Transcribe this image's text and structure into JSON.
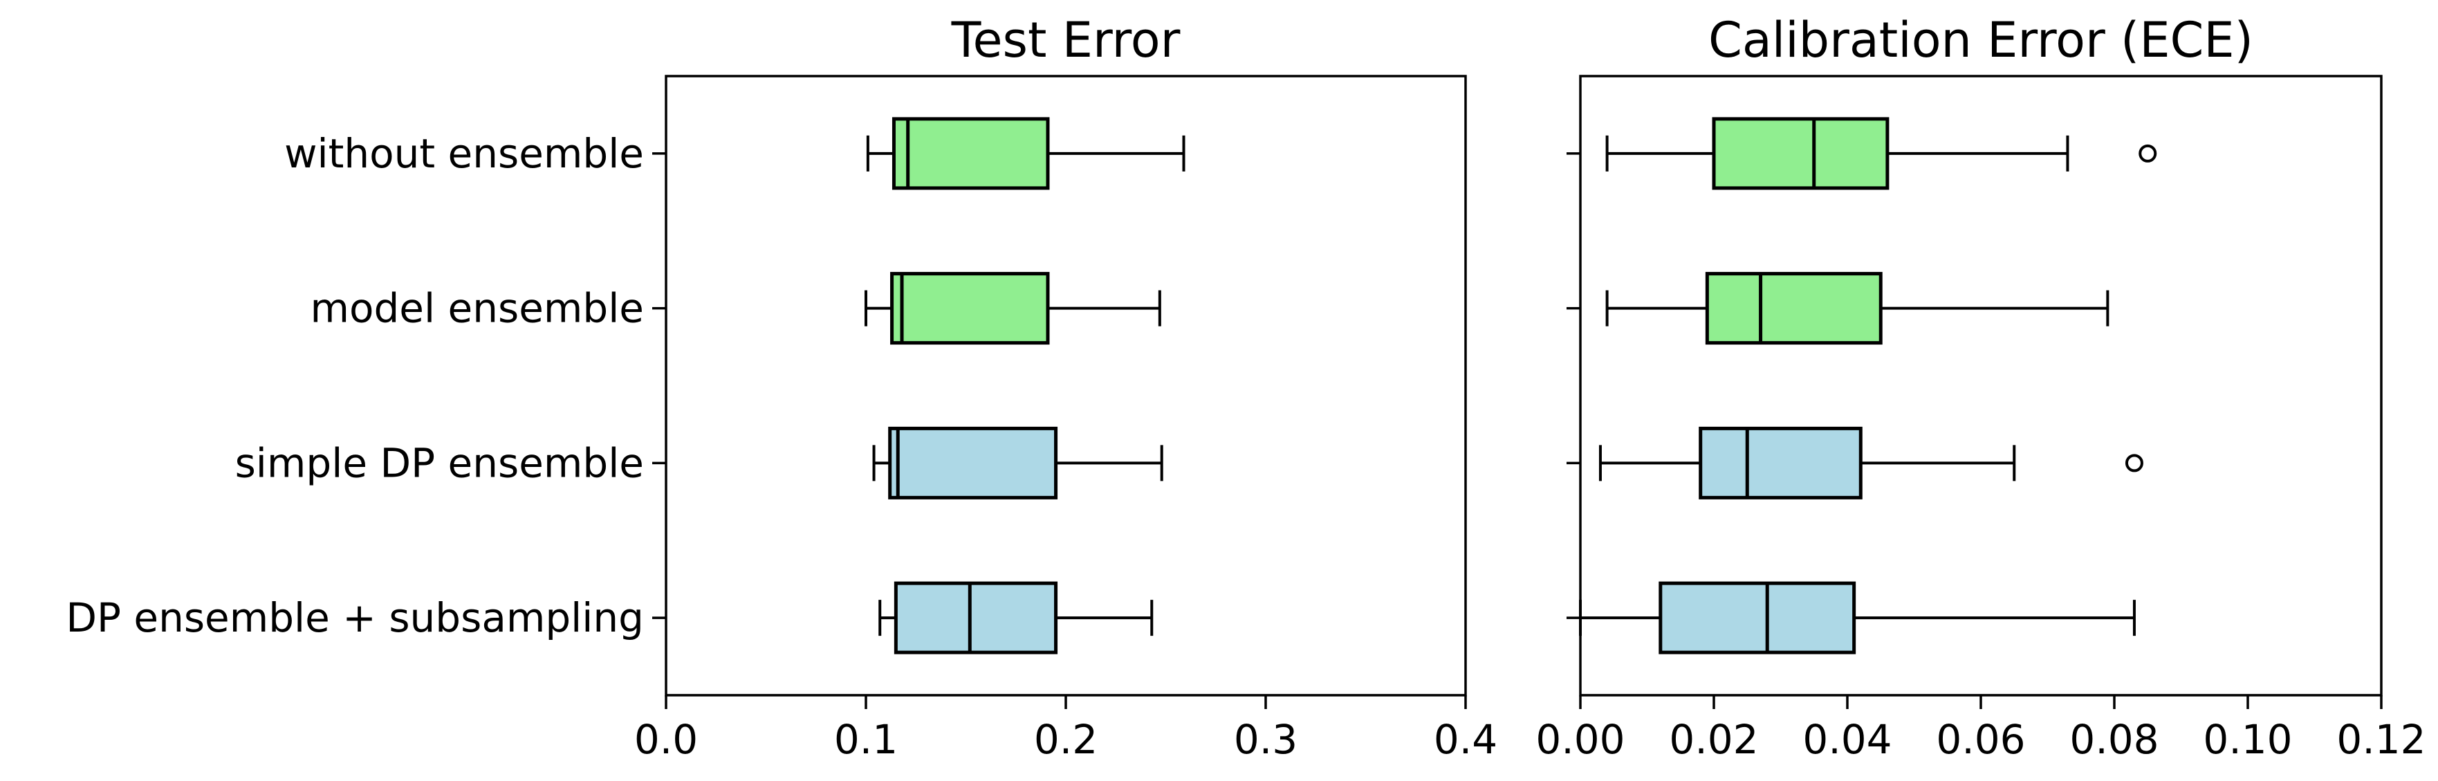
{
  "figure": {
    "background": "#ffffff",
    "text_color": "#000000",
    "box_colors": {
      "green": "#90EE90",
      "blue": "#ADD8E6"
    },
    "line_color": "#000000"
  },
  "categories": [
    "without ensemble",
    "model ensemble",
    "simple DP ensemble",
    "DP ensemble + subsampling"
  ],
  "chart_data": [
    {
      "type": "boxplot",
      "orientation": "horizontal",
      "title": "Test Error",
      "xlabel": "",
      "ylabel": "",
      "xlim": [
        0.0,
        0.4
      ],
      "xtick_values": [
        0.0,
        0.1,
        0.2,
        0.3,
        0.4
      ],
      "xtick_labels": [
        "0.0",
        "0.1",
        "0.2",
        "0.3",
        "0.4"
      ],
      "show_category_labels": true,
      "grid": false,
      "categories": [
        "without ensemble",
        "model ensemble",
        "simple DP ensemble",
        "DP ensemble + subsampling"
      ],
      "series": [
        {
          "category": "without ensemble",
          "color": "#90EE90",
          "whislo": 0.101,
          "q1": 0.114,
          "med": 0.121,
          "q3": 0.191,
          "whishi": 0.259,
          "outliers": []
        },
        {
          "category": "model ensemble",
          "color": "#90EE90",
          "whislo": 0.1,
          "q1": 0.113,
          "med": 0.118,
          "q3": 0.191,
          "whishi": 0.247,
          "outliers": []
        },
        {
          "category": "simple DP ensemble",
          "color": "#ADD8E6",
          "whislo": 0.104,
          "q1": 0.112,
          "med": 0.116,
          "q3": 0.195,
          "whishi": 0.248,
          "outliers": []
        },
        {
          "category": "DP ensemble + subsampling",
          "color": "#ADD8E6",
          "whislo": 0.107,
          "q1": 0.115,
          "med": 0.152,
          "q3": 0.195,
          "whishi": 0.243,
          "outliers": []
        }
      ]
    },
    {
      "type": "boxplot",
      "orientation": "horizontal",
      "title": "Calibration Error (ECE)",
      "xlabel": "",
      "ylabel": "",
      "xlim": [
        0.0,
        0.12
      ],
      "xtick_values": [
        0.0,
        0.02,
        0.04,
        0.06,
        0.08,
        0.1,
        0.12
      ],
      "xtick_labels": [
        "0.00",
        "0.02",
        "0.04",
        "0.06",
        "0.08",
        "0.10",
        "0.12"
      ],
      "show_category_labels": false,
      "grid": false,
      "categories": [
        "without ensemble",
        "model ensemble",
        "simple DP ensemble",
        "DP ensemble + subsampling"
      ],
      "series": [
        {
          "category": "without ensemble",
          "color": "#90EE90",
          "whislo": 0.004,
          "q1": 0.02,
          "med": 0.035,
          "q3": 0.046,
          "whishi": 0.073,
          "outliers": [
            0.085
          ]
        },
        {
          "category": "model ensemble",
          "color": "#90EE90",
          "whislo": 0.004,
          "q1": 0.019,
          "med": 0.027,
          "q3": 0.045,
          "whishi": 0.079,
          "outliers": []
        },
        {
          "category": "simple DP ensemble",
          "color": "#ADD8E6",
          "whislo": 0.003,
          "q1": 0.018,
          "med": 0.025,
          "q3": 0.042,
          "whishi": 0.065,
          "outliers": [
            0.083
          ]
        },
        {
          "category": "DP ensemble + subsampling",
          "color": "#ADD8E6",
          "whislo": 0.0,
          "q1": 0.012,
          "med": 0.028,
          "q3": 0.041,
          "whishi": 0.083,
          "outliers": []
        }
      ]
    }
  ]
}
